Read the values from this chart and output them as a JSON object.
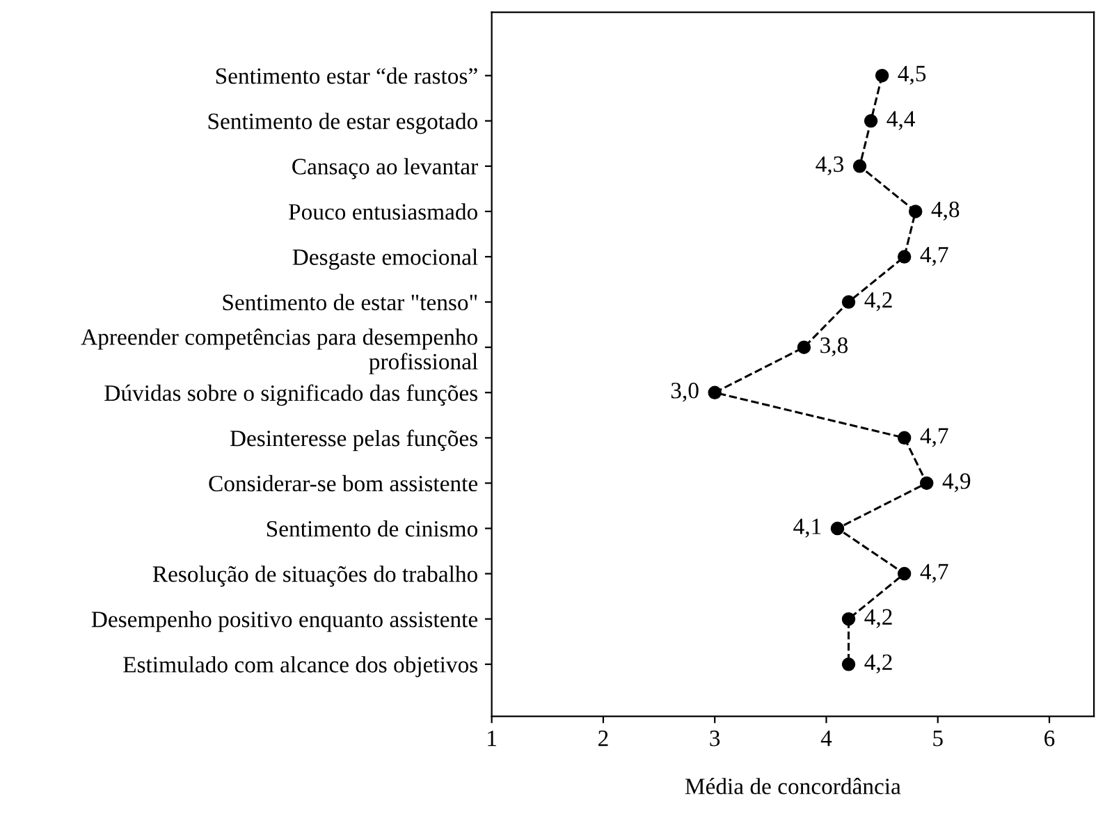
{
  "chart_data": {
    "type": "line",
    "orientation": "horizontal",
    "xlabel": "Média de concordância",
    "categories": [
      "Sentimento estar “de rastos”",
      "Sentimento de estar esgotado",
      "Cansaço ao levantar",
      "Pouco entusiasmado",
      "Desgaste emocional",
      "Sentimento de estar \"tenso\"",
      "Apreender competências para desempenho\nprofissional",
      "Dúvidas sobre o significado das funções",
      "Desinteresse pelas funções",
      "Considerar-se bom assistente",
      "Sentimento de cinismo",
      "Resolução de situações do trabalho",
      "Desempenho positivo enquanto assistente",
      "Estimulado com alcance dos objetivos"
    ],
    "series": [
      {
        "color": "#000000",
        "values": [
          4.5,
          4.4,
          4.3,
          4.8,
          4.7,
          4.2,
          3.8,
          3.0,
          4.7,
          4.9,
          4.1,
          4.7,
          4.2,
          4.2
        ],
        "value_labels": [
          "4,5",
          "4,4",
          "4,3",
          "4,8",
          "4,7",
          "4,2",
          "3,8",
          "3,0",
          "4,7",
          "4,9",
          "4,1",
          "4,7",
          "4,2",
          "4,2"
        ]
      }
    ],
    "xlim": [
      1,
      6.4
    ],
    "xticks": [
      1,
      2,
      3,
      4,
      5,
      6
    ],
    "marker": "circle",
    "line_style": "dashed",
    "grid": false
  }
}
